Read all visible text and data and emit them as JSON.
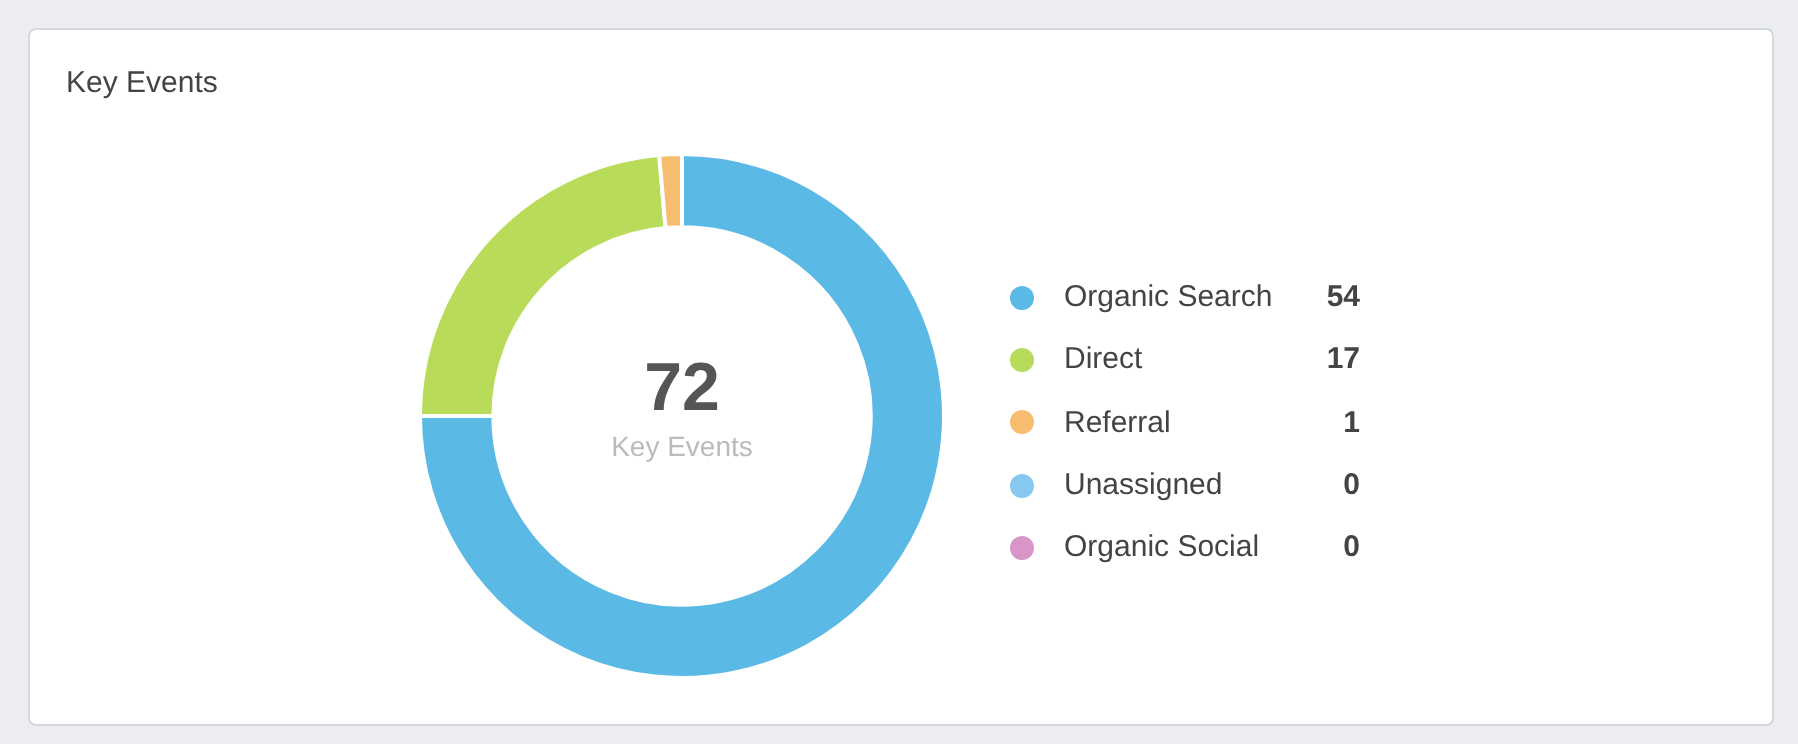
{
  "chart_data": {
    "type": "donut",
    "title": "Key Events",
    "categories": [
      "Organic Search",
      "Direct",
      "Referral",
      "Unassigned",
      "Organic Social"
    ],
    "values": [
      54,
      17,
      1,
      0,
      0
    ],
    "colors": [
      "#5bb9e6",
      "#b8dc5a",
      "#f5bd6d",
      "#86c8f0",
      "#d896c8"
    ],
    "value_labels": [
      "54",
      "17",
      "1",
      "0",
      "0"
    ],
    "legend": "right",
    "annotations": [
      "72",
      "Key Events"
    ]
  }
}
